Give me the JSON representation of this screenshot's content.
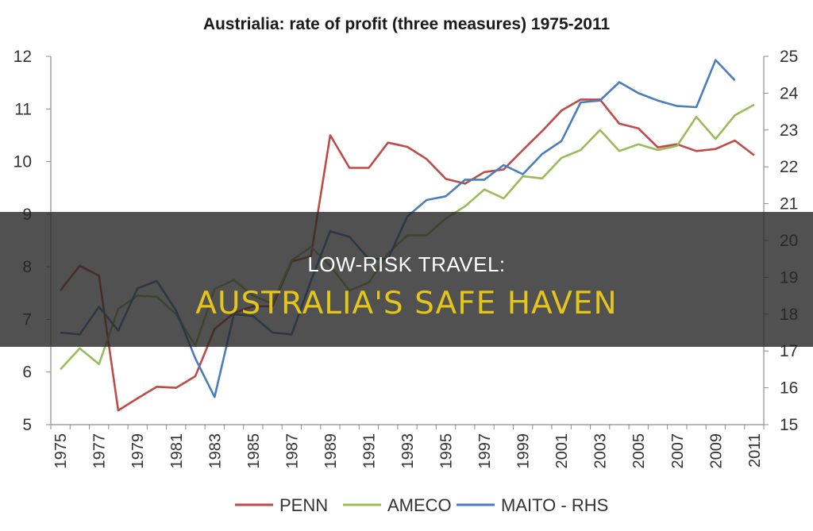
{
  "banner": {
    "subtitle": "LOW-RISK TRAVEL:",
    "title": "AUSTRALIA'S SAFE HAVEN",
    "background_color": "#262626",
    "subtitle_color": "#ffffff",
    "title_color": "#e3c51b"
  },
  "chart_data": {
    "type": "line",
    "title": "Austrialia: rate of profit (three measures) 1975-2011",
    "x": [
      1975,
      1976,
      1977,
      1978,
      1979,
      1980,
      1981,
      1982,
      1983,
      1984,
      1985,
      1986,
      1987,
      1988,
      1989,
      1990,
      1991,
      1992,
      1993,
      1994,
      1995,
      1996,
      1997,
      1998,
      1999,
      2000,
      2001,
      2002,
      2003,
      2004,
      2005,
      2006,
      2007,
      2008,
      2009,
      2010,
      2011
    ],
    "x_tick_labels": [
      "1975",
      "1977",
      "1979",
      "1981",
      "1983",
      "1985",
      "1987",
      "1989",
      "1991",
      "1993",
      "1995",
      "1997",
      "1999",
      "2001",
      "2003",
      "2005",
      "2007",
      "2009",
      "2011"
    ],
    "ylim_left": [
      5,
      12
    ],
    "y_left_ticks": [
      "5",
      "6",
      "7",
      "8",
      "9",
      "10",
      "11",
      "12"
    ],
    "ylim_right": [
      15,
      25
    ],
    "y_right_ticks": [
      "15",
      "16",
      "17",
      "18",
      "19",
      "20",
      "21",
      "22",
      "23",
      "24",
      "25"
    ],
    "grid": false,
    "legend_position": "bottom",
    "series": [
      {
        "name": "PENN",
        "axis": "left",
        "color": "#be4b48",
        "values": [
          7.55,
          8.02,
          7.83,
          5.27,
          5.5,
          5.72,
          5.7,
          5.92,
          6.82,
          7.12,
          7.25,
          7.25,
          8.1,
          8.2,
          10.5,
          9.88,
          9.88,
          10.36,
          10.28,
          10.05,
          9.67,
          9.58,
          9.8,
          9.85,
          10.22,
          10.58,
          10.97,
          11.18,
          11.18,
          10.72,
          10.63,
          10.27,
          10.33,
          10.2,
          10.24,
          10.4,
          10.12
        ]
      },
      {
        "name": "AMECO",
        "axis": "left",
        "color": "#9bbb59",
        "values": [
          6.05,
          6.45,
          6.15,
          7.2,
          7.45,
          7.43,
          7.1,
          6.5,
          7.58,
          7.75,
          7.45,
          7.3,
          8.12,
          8.38,
          8.02,
          7.55,
          7.7,
          8.25,
          8.6,
          8.6,
          8.92,
          9.15,
          9.47,
          9.3,
          9.72,
          9.68,
          10.07,
          10.22,
          10.6,
          10.2,
          10.33,
          10.22,
          10.3,
          10.85,
          10.43,
          10.88,
          11.08
        ]
      },
      {
        "name": "MAITO - RHS",
        "axis": "right",
        "color": "#4a7ebb",
        "values": [
          17.5,
          17.45,
          18.2,
          17.55,
          18.7,
          18.9,
          18.1,
          16.8,
          15.75,
          18.0,
          17.95,
          17.5,
          17.45,
          18.9,
          20.25,
          20.1,
          19.5,
          19.5,
          20.65,
          21.1,
          21.2,
          21.65,
          21.65,
          22.05,
          21.8,
          22.35,
          22.7,
          23.75,
          23.8,
          24.3,
          24.0,
          23.8,
          23.65,
          23.62,
          24.9,
          24.35,
          null
        ]
      }
    ]
  }
}
